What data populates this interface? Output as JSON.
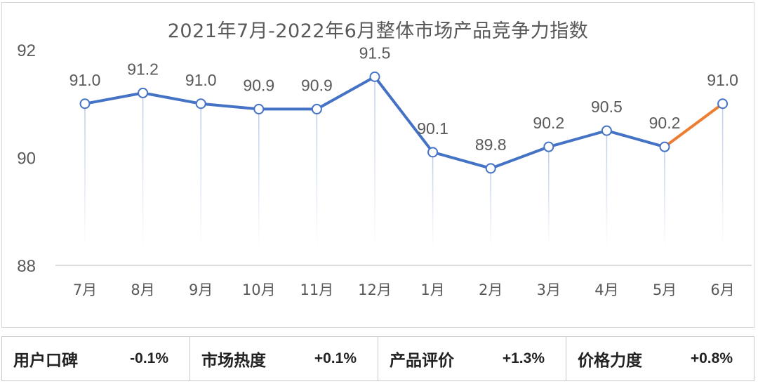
{
  "chart_data": {
    "type": "line",
    "title": "2021年7月-2022年6月整体市场产品竞争力指数",
    "categories": [
      "7月",
      "8月",
      "9月",
      "10月",
      "11月",
      "12月",
      "1月",
      "2月",
      "3月",
      "4月",
      "5月",
      "6月"
    ],
    "values": [
      91.0,
      91.2,
      91.0,
      90.9,
      90.9,
      91.5,
      90.1,
      89.8,
      90.2,
      90.5,
      90.2,
      91.0
    ],
    "data_labels": [
      "91.0",
      "91.2",
      "91.0",
      "90.9",
      "90.9",
      "91.5",
      "90.1",
      "89.8",
      "90.2",
      "90.5",
      "90.2",
      "91.0"
    ],
    "ylim": [
      88,
      92
    ],
    "yticks": [
      "88",
      "90",
      "92"
    ],
    "grid": false,
    "legend": "none",
    "colors": {
      "line": "#4472c4",
      "last_segment": "#ed7d31",
      "drop_line": "#c9d7ee",
      "axis_text": "#595959"
    }
  },
  "metrics": [
    {
      "label": "用户口碑",
      "value": "-0.1%"
    },
    {
      "label": "市场热度",
      "value": "+0.1%"
    },
    {
      "label": "产品评价",
      "value": "+1.3%"
    },
    {
      "label": "价格力度",
      "value": "+0.8%"
    }
  ]
}
